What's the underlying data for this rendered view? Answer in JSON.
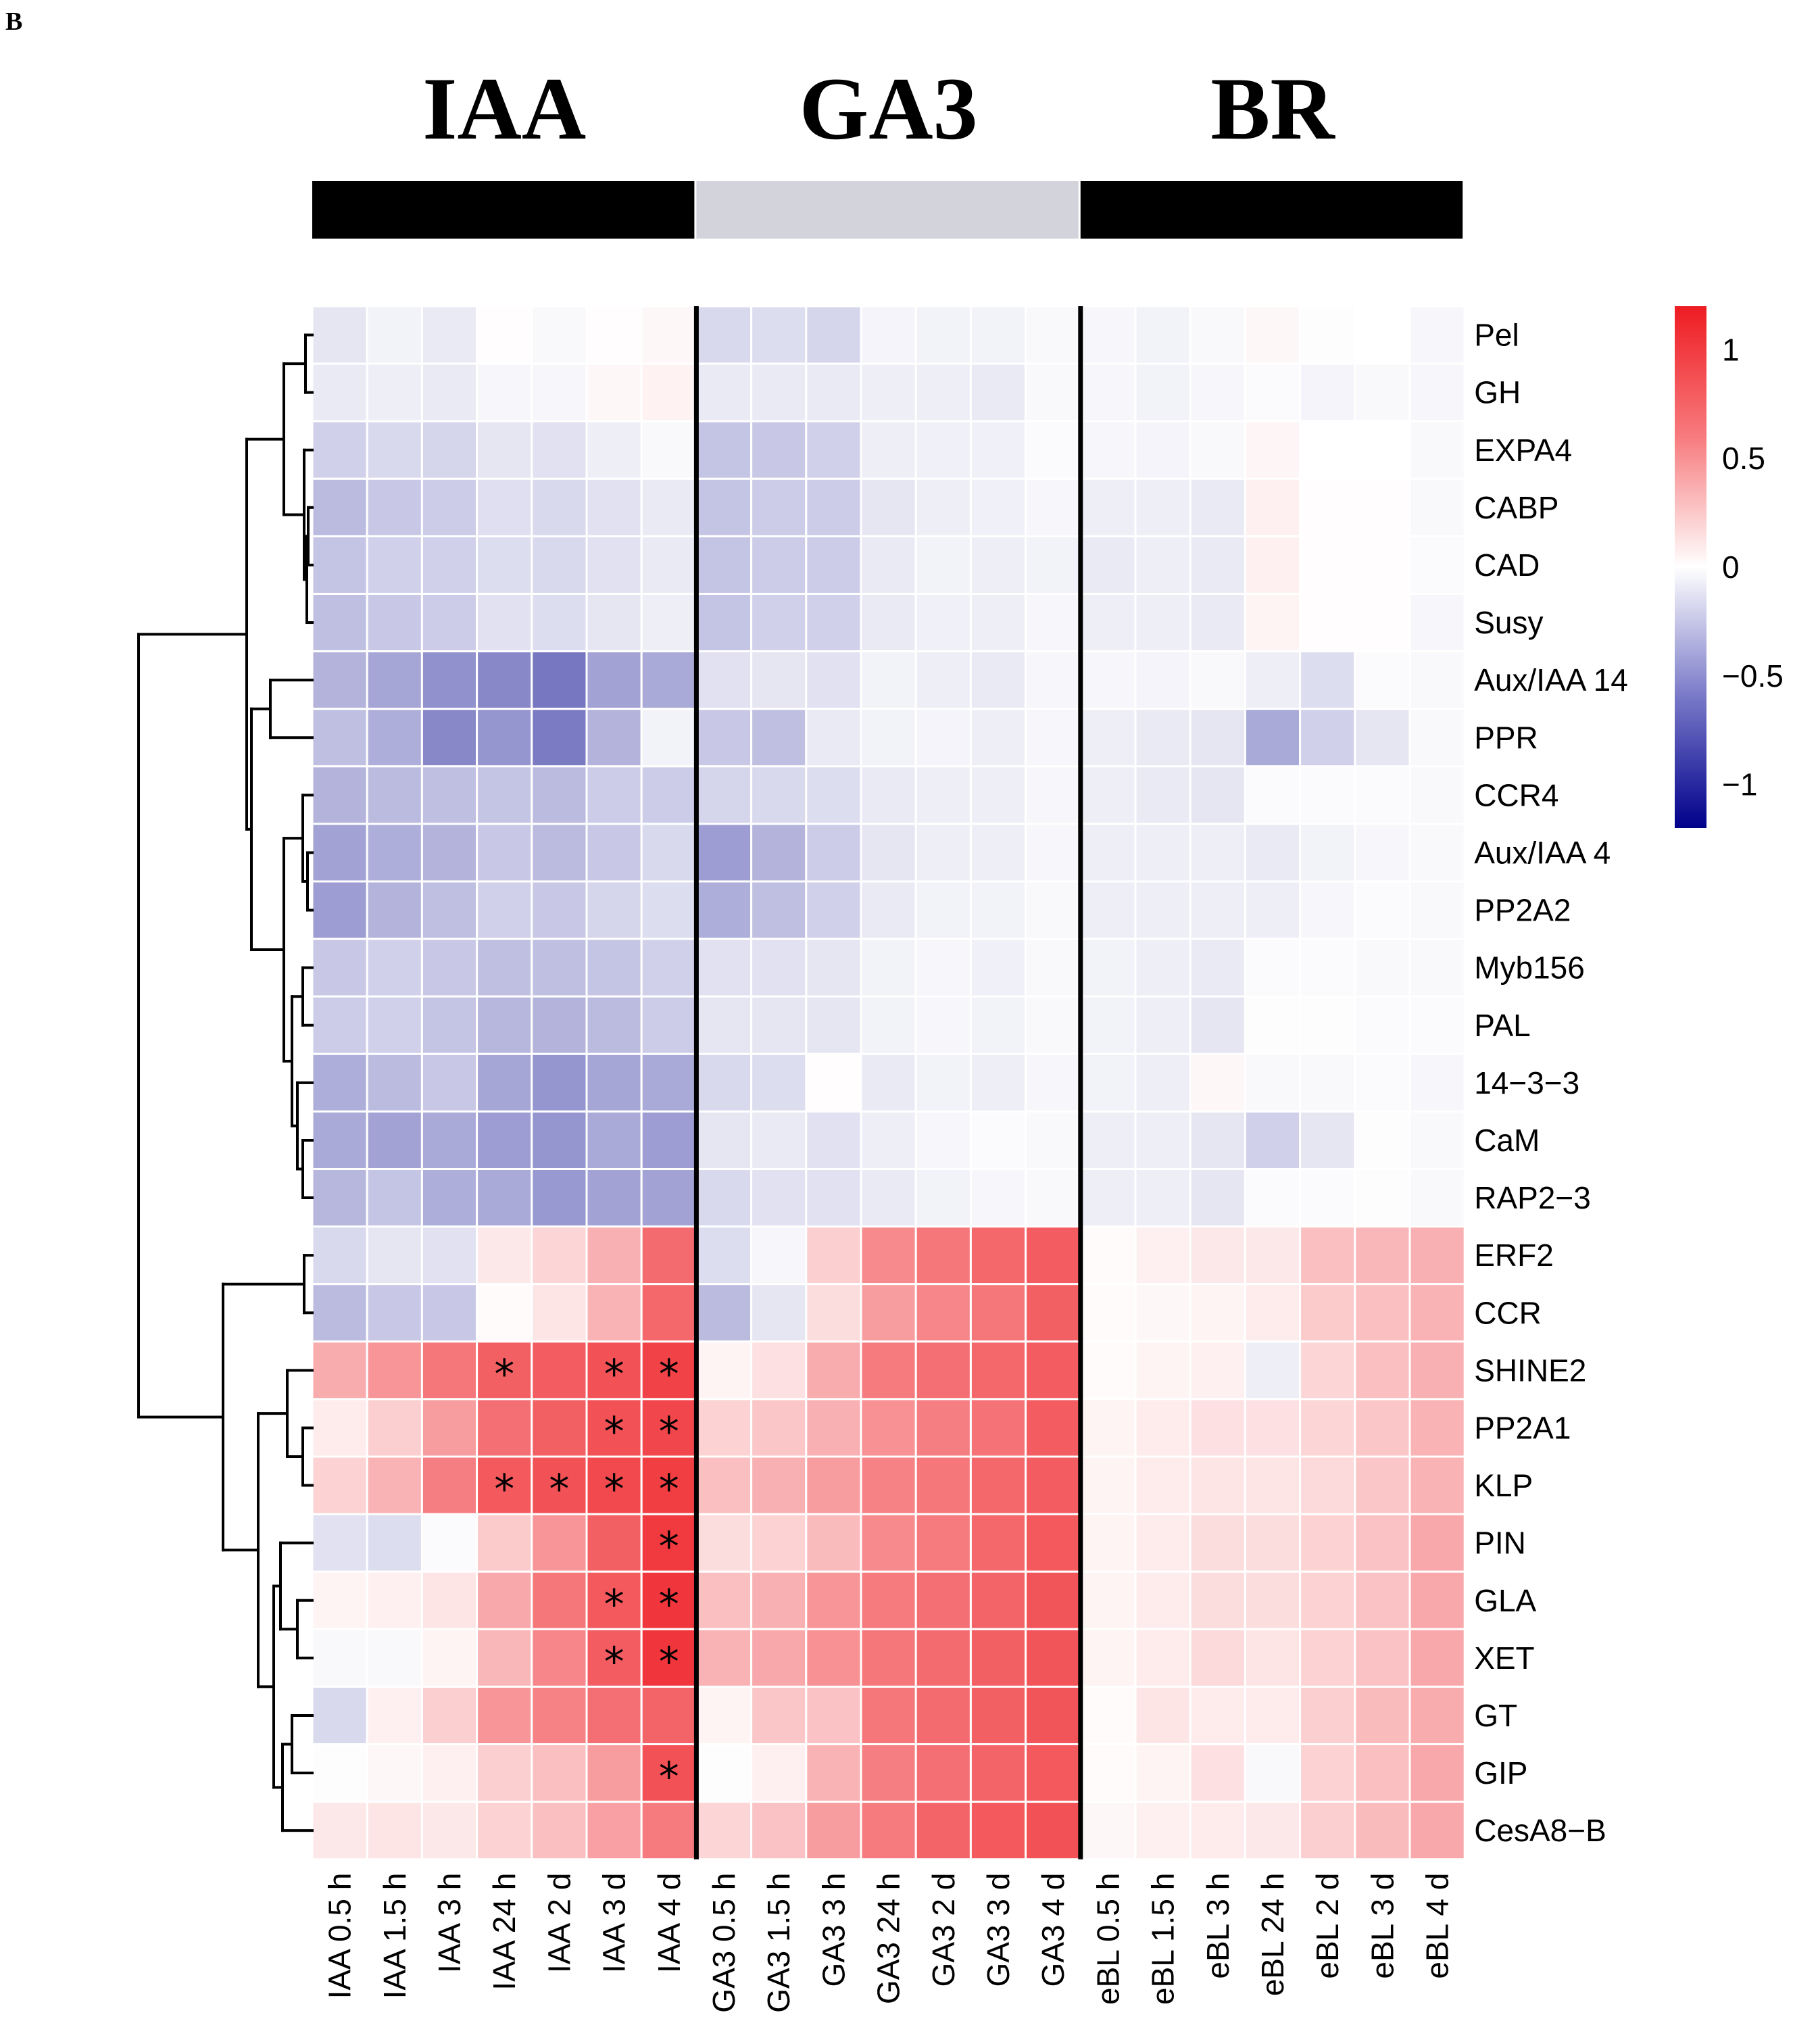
{
  "panel_label": "B",
  "chart_data": {
    "type": "heatmap",
    "title": "",
    "groups": [
      {
        "name": "IAA",
        "color": "#000000"
      },
      {
        "name": "GA3",
        "color": "#d3d3dc"
      },
      {
        "name": "BR",
        "color": "#000000"
      }
    ],
    "columns": [
      "IAA 0.5 h",
      "IAA 1.5 h",
      "IAA 3 h",
      "IAA 24 h",
      "IAA 2 d",
      "IAA 3 d",
      "IAA 4 d",
      "GA3 0.5 h",
      "GA3 1.5 h",
      "GA3 3 h",
      "GA3 24 h",
      "GA3 2 d",
      "GA3 3 d",
      "GA3 4 d",
      "eBL 0.5 h",
      "eBL 1.5 h",
      "eBL 3 h",
      "eBL 24 h",
      "eBL 2 d",
      "eBL 3 d",
      "eBL 4 d"
    ],
    "rows": [
      "Pel",
      "GH",
      "EXPA4",
      "CABP",
      "CAD",
      "Susy",
      "Aux/IAA 14",
      "PPR",
      "CCR4",
      "Aux/IAA 4",
      "PP2A2",
      "Myb156",
      "PAL",
      "14−3−3",
      "CaM",
      "RAP2−3",
      "ERF2",
      "CCR",
      "SHINE2",
      "PP2A1",
      "KLP",
      "PIN",
      "GLA",
      "XET",
      "GT",
      "GIP",
      "CesA8−B"
    ],
    "values": [
      [
        -0.12,
        -0.06,
        -0.1,
        0.01,
        -0.03,
        0.01,
        0.04,
        -0.18,
        -0.16,
        -0.2,
        -0.05,
        -0.06,
        -0.06,
        -0.03,
        -0.04,
        -0.06,
        -0.03,
        0.04,
        -0.01,
        0.0,
        -0.04
      ],
      [
        -0.1,
        -0.08,
        -0.1,
        -0.04,
        -0.04,
        0.04,
        0.07,
        -0.1,
        -0.1,
        -0.1,
        -0.08,
        -0.08,
        -0.1,
        -0.03,
        -0.04,
        -0.06,
        -0.04,
        -0.02,
        -0.05,
        -0.03,
        -0.04
      ],
      [
        -0.22,
        -0.18,
        -0.2,
        -0.12,
        -0.14,
        -0.08,
        -0.03,
        -0.28,
        -0.26,
        -0.22,
        -0.08,
        -0.07,
        -0.07,
        -0.02,
        -0.04,
        -0.05,
        -0.03,
        0.05,
        0.0,
        0.0,
        -0.03
      ],
      [
        -0.32,
        -0.26,
        -0.24,
        -0.15,
        -0.18,
        -0.14,
        -0.1,
        -0.28,
        -0.24,
        -0.24,
        -0.12,
        -0.08,
        -0.07,
        -0.04,
        -0.08,
        -0.08,
        -0.1,
        0.08,
        0.01,
        0.01,
        -0.03
      ],
      [
        -0.28,
        -0.22,
        -0.22,
        -0.16,
        -0.18,
        -0.14,
        -0.1,
        -0.28,
        -0.24,
        -0.24,
        -0.1,
        -0.06,
        -0.08,
        -0.06,
        -0.1,
        -0.08,
        -0.1,
        0.08,
        0.01,
        0.01,
        -0.02
      ],
      [
        -0.3,
        -0.26,
        -0.24,
        -0.14,
        -0.16,
        -0.12,
        -0.08,
        -0.28,
        -0.22,
        -0.22,
        -0.1,
        -0.07,
        -0.08,
        -0.04,
        -0.08,
        -0.08,
        -0.1,
        0.06,
        0.01,
        0.01,
        -0.04
      ],
      [
        -0.36,
        -0.42,
        -0.52,
        -0.56,
        -0.64,
        -0.44,
        -0.4,
        -0.14,
        -0.12,
        -0.14,
        -0.06,
        -0.08,
        -0.1,
        -0.04,
        -0.04,
        -0.05,
        -0.03,
        -0.08,
        -0.16,
        -0.02,
        -0.03
      ],
      [
        -0.3,
        -0.38,
        -0.56,
        -0.5,
        -0.62,
        -0.36,
        -0.06,
        -0.26,
        -0.3,
        -0.1,
        -0.06,
        -0.05,
        -0.08,
        -0.04,
        -0.08,
        -0.1,
        -0.12,
        -0.4,
        -0.22,
        -0.12,
        -0.03
      ],
      [
        -0.36,
        -0.32,
        -0.3,
        -0.28,
        -0.32,
        -0.24,
        -0.24,
        -0.2,
        -0.18,
        -0.16,
        -0.1,
        -0.08,
        -0.08,
        -0.04,
        -0.08,
        -0.1,
        -0.12,
        -0.02,
        -0.02,
        -0.02,
        -0.03
      ],
      [
        -0.44,
        -0.38,
        -0.36,
        -0.26,
        -0.32,
        -0.26,
        -0.18,
        -0.46,
        -0.36,
        -0.24,
        -0.12,
        -0.08,
        -0.08,
        -0.04,
        -0.08,
        -0.08,
        -0.08,
        -0.1,
        -0.06,
        -0.04,
        -0.03
      ],
      [
        -0.46,
        -0.36,
        -0.3,
        -0.22,
        -0.26,
        -0.2,
        -0.16,
        -0.38,
        -0.3,
        -0.22,
        -0.1,
        -0.06,
        -0.06,
        -0.03,
        -0.08,
        -0.08,
        -0.08,
        -0.08,
        -0.04,
        -0.02,
        -0.03
      ],
      [
        -0.26,
        -0.22,
        -0.26,
        -0.3,
        -0.3,
        -0.28,
        -0.22,
        -0.14,
        -0.14,
        -0.12,
        -0.06,
        -0.04,
        -0.07,
        -0.03,
        -0.06,
        -0.08,
        -0.1,
        -0.02,
        -0.02,
        -0.03,
        -0.03
      ],
      [
        -0.24,
        -0.22,
        -0.28,
        -0.34,
        -0.36,
        -0.32,
        -0.24,
        -0.12,
        -0.12,
        -0.12,
        -0.06,
        -0.04,
        -0.06,
        -0.03,
        -0.06,
        -0.08,
        -0.12,
        -0.01,
        -0.01,
        -0.02,
        -0.02
      ],
      [
        -0.38,
        -0.32,
        -0.26,
        -0.42,
        -0.5,
        -0.42,
        -0.4,
        -0.18,
        -0.16,
        0.01,
        -0.1,
        -0.06,
        -0.08,
        -0.04,
        -0.06,
        -0.08,
        0.04,
        -0.03,
        -0.03,
        -0.02,
        -0.04
      ],
      [
        -0.4,
        -0.44,
        -0.4,
        -0.46,
        -0.5,
        -0.4,
        -0.46,
        -0.12,
        -0.1,
        -0.14,
        -0.08,
        -0.04,
        -0.02,
        -0.03,
        -0.08,
        -0.08,
        -0.12,
        -0.22,
        -0.12,
        -0.01,
        -0.03
      ],
      [
        -0.34,
        -0.28,
        -0.38,
        -0.4,
        -0.48,
        -0.44,
        -0.44,
        -0.18,
        -0.14,
        -0.14,
        -0.1,
        -0.06,
        -0.04,
        -0.03,
        -0.08,
        -0.08,
        -0.12,
        -0.02,
        -0.02,
        -0.01,
        -0.03
      ],
      [
        -0.18,
        -0.12,
        -0.14,
        0.12,
        0.22,
        0.42,
        0.78,
        -0.16,
        -0.04,
        0.26,
        0.62,
        0.72,
        0.8,
        0.86,
        0.02,
        0.08,
        0.12,
        0.12,
        0.34,
        0.38,
        0.42
      ],
      [
        -0.32,
        -0.26,
        -0.26,
        0.02,
        0.14,
        0.4,
        0.8,
        -0.32,
        -0.12,
        0.18,
        0.52,
        0.64,
        0.72,
        0.84,
        0.02,
        0.04,
        0.06,
        0.1,
        0.28,
        0.34,
        0.4
      ],
      [
        0.44,
        0.56,
        0.72,
        0.84,
        0.86,
        0.92,
        1.0,
        0.06,
        0.16,
        0.44,
        0.7,
        0.76,
        0.8,
        0.86,
        0.02,
        0.06,
        0.08,
        -0.08,
        0.22,
        0.34,
        0.42
      ],
      [
        0.1,
        0.26,
        0.52,
        0.76,
        0.84,
        0.92,
        0.98,
        0.24,
        0.3,
        0.42,
        0.58,
        0.68,
        0.74,
        0.86,
        0.06,
        0.1,
        0.16,
        0.16,
        0.22,
        0.3,
        0.4
      ],
      [
        0.24,
        0.4,
        0.68,
        0.88,
        0.92,
        0.96,
        1.02,
        0.34,
        0.42,
        0.52,
        0.66,
        0.72,
        0.8,
        0.86,
        0.06,
        0.1,
        0.14,
        0.14,
        0.2,
        0.3,
        0.4
      ],
      [
        -0.14,
        -0.16,
        -0.02,
        0.28,
        0.56,
        0.84,
        1.04,
        0.18,
        0.24,
        0.36,
        0.62,
        0.7,
        0.8,
        0.88,
        0.06,
        0.1,
        0.18,
        0.18,
        0.24,
        0.32,
        0.46
      ],
      [
        0.06,
        0.08,
        0.14,
        0.46,
        0.72,
        0.88,
        1.06,
        0.34,
        0.42,
        0.56,
        0.7,
        0.76,
        0.82,
        0.9,
        0.06,
        0.1,
        0.18,
        0.18,
        0.24,
        0.32,
        0.46
      ],
      [
        -0.03,
        -0.03,
        0.06,
        0.38,
        0.64,
        0.86,
        1.06,
        0.4,
        0.46,
        0.58,
        0.72,
        0.78,
        0.84,
        0.9,
        0.06,
        0.1,
        0.2,
        0.14,
        0.24,
        0.32,
        0.46
      ],
      [
        -0.18,
        0.08,
        0.26,
        0.56,
        0.66,
        0.76,
        0.82,
        0.06,
        0.3,
        0.32,
        0.72,
        0.78,
        0.84,
        0.9,
        0.02,
        0.14,
        0.1,
        0.1,
        0.26,
        0.36,
        0.44
      ],
      [
        -0.01,
        0.04,
        0.08,
        0.26,
        0.34,
        0.52,
        0.92,
        -0.01,
        0.08,
        0.4,
        0.68,
        0.76,
        0.82,
        0.88,
        0.02,
        0.06,
        0.16,
        -0.03,
        0.24,
        0.34,
        0.46
      ],
      [
        0.12,
        0.14,
        0.12,
        0.24,
        0.34,
        0.5,
        0.7,
        0.22,
        0.32,
        0.52,
        0.7,
        0.82,
        0.88,
        0.92,
        0.04,
        0.08,
        0.1,
        0.12,
        0.26,
        0.36,
        0.46
      ]
    ],
    "significant": [
      {
        "row": 18,
        "col": 3
      },
      {
        "row": 18,
        "col": 5
      },
      {
        "row": 18,
        "col": 6
      },
      {
        "row": 19,
        "col": 5
      },
      {
        "row": 19,
        "col": 6
      },
      {
        "row": 20,
        "col": 3
      },
      {
        "row": 20,
        "col": 4
      },
      {
        "row": 20,
        "col": 5
      },
      {
        "row": 20,
        "col": 6
      },
      {
        "row": 21,
        "col": 6
      },
      {
        "row": 22,
        "col": 5
      },
      {
        "row": 22,
        "col": 6
      },
      {
        "row": 23,
        "col": 5
      },
      {
        "row": 23,
        "col": 6
      },
      {
        "row": 25,
        "col": 6
      }
    ],
    "significance_marker": "*",
    "color_scale": {
      "range": [
        -1.2,
        1.2
      ],
      "low": "#00008b",
      "mid": "#ffffff",
      "high": "#ee1c22",
      "ticks": [
        {
          "value": 1,
          "label": "1"
        },
        {
          "value": 0.5,
          "label": "0.5"
        },
        {
          "value": 0,
          "label": "0"
        },
        {
          "value": -0.5,
          "label": "−0.5"
        },
        {
          "value": -1,
          "label": "−1"
        }
      ]
    },
    "row_dendrogram": true,
    "legend_position": "right"
  }
}
